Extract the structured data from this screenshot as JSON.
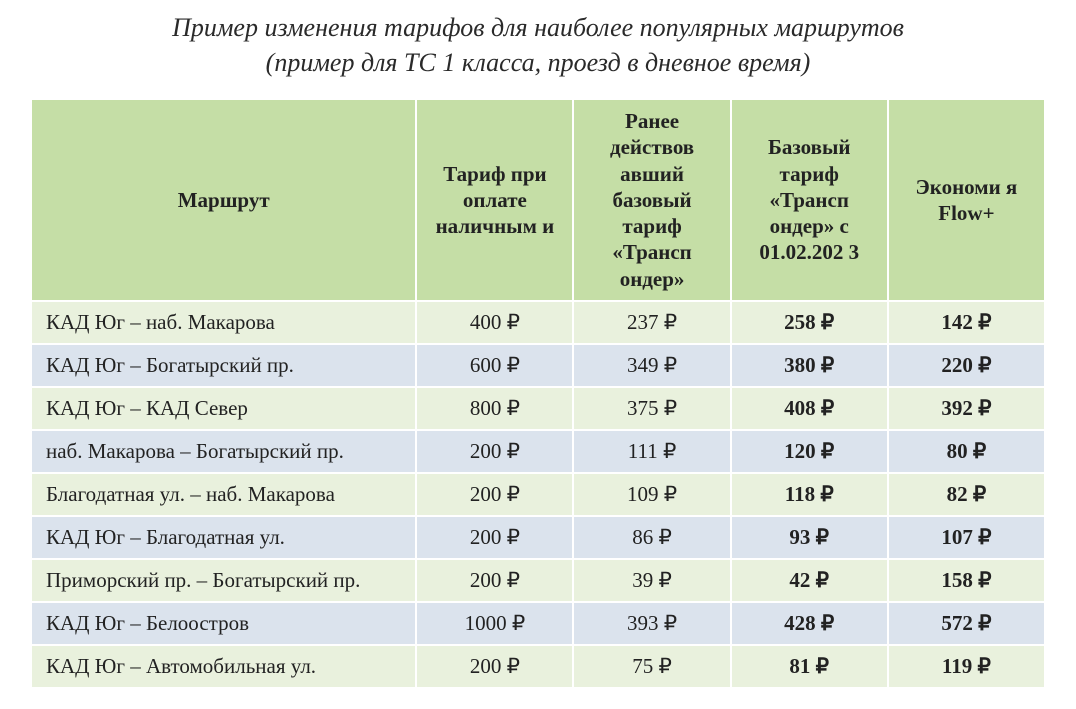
{
  "title_line1": "Пример изменения тарифов для наиболее популярных маршрутов",
  "title_line2": "(пример для ТС 1 класса, проезд в дневное время)",
  "currency": "₽",
  "columns": {
    "route": "Маршрут",
    "cash": "Тариф при оплате наличным и",
    "old_base": "Ранее действов авший базовый тариф «Трансп ондер»",
    "new_base": "Базовый тариф «Трансп ондер» с 01.02.202 3",
    "flow": "Экономи я Flow+"
  },
  "col_widths_pct": [
    38,
    15.5,
    15.5,
    15.5,
    15.5
  ],
  "colors": {
    "header_bg": "#c5dea6",
    "row_even_bg": "#e9f1dd",
    "row_odd_bg": "#dbe3ed",
    "border": "#ffffff",
    "text": "#222222"
  },
  "rows": [
    {
      "route": "КАД Юг – наб. Макарова",
      "cash": 400,
      "old_base": 237,
      "new_base": 258,
      "flow": 142
    },
    {
      "route": "КАД Юг – Богатырский пр.",
      "cash": 600,
      "old_base": 349,
      "new_base": 380,
      "flow": 220
    },
    {
      "route": "КАД Юг – КАД Север",
      "cash": 800,
      "old_base": 375,
      "new_base": 408,
      "flow": 392
    },
    {
      "route": "наб. Макарова – Богатырский пр.",
      "cash": 200,
      "old_base": 111,
      "new_base": 120,
      "flow": 80
    },
    {
      "route": "Благодатная ул. – наб. Макарова",
      "cash": 200,
      "old_base": 109,
      "new_base": 118,
      "flow": 82
    },
    {
      "route": "КАД Юг – Благодатная ул.",
      "cash": 200,
      "old_base": 86,
      "new_base": 93,
      "flow": 107
    },
    {
      "route": "Приморский пр. – Богатырский пр.",
      "cash": 200,
      "old_base": 39,
      "new_base": 42,
      "flow": 158
    },
    {
      "route": "КАД Юг – Белоостров",
      "cash": 1000,
      "old_base": 393,
      "new_base": 428,
      "flow": 572
    },
    {
      "route": "КАД Юг – Автомобильная ул.",
      "cash": 200,
      "old_base": 75,
      "new_base": 81,
      "flow": 119
    }
  ]
}
